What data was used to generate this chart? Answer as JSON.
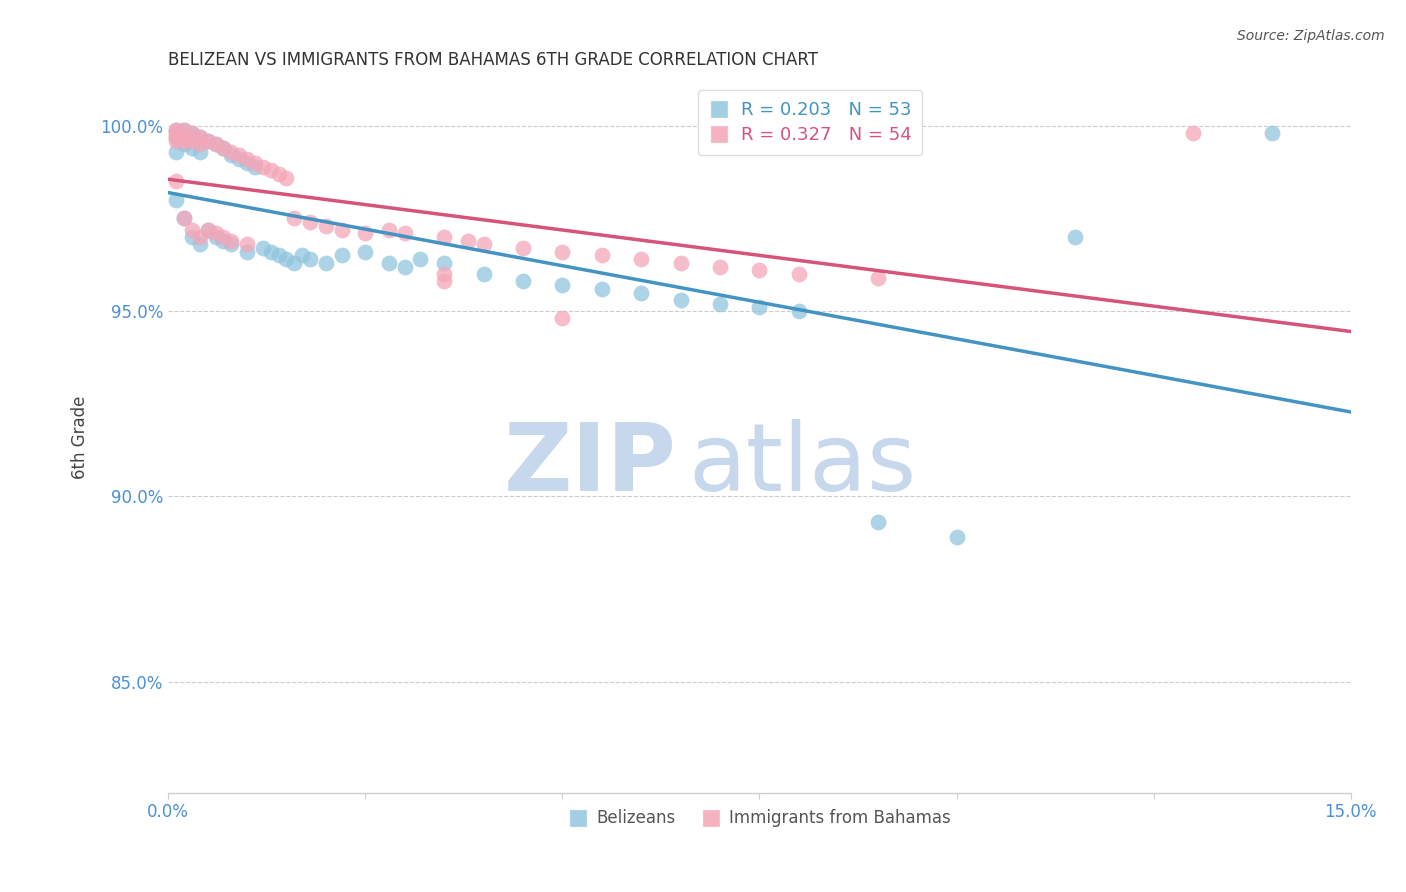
{
  "title": "BELIZEAN VS IMMIGRANTS FROM BAHAMAS 6TH GRADE CORRELATION CHART",
  "source": "Source: ZipAtlas.com",
  "ylabel": "6th Grade",
  "xlim": [
    0.0,
    0.15
  ],
  "ylim": [
    0.82,
    1.012
  ],
  "yticks": [
    0.85,
    0.9,
    0.95,
    1.0
  ],
  "ytick_labels": [
    "85.0%",
    "90.0%",
    "95.0%",
    "100.0%"
  ],
  "xticks": [
    0.0,
    0.025,
    0.05,
    0.075,
    0.1,
    0.125,
    0.15
  ],
  "blue_R": 0.203,
  "blue_N": 53,
  "pink_R": 0.327,
  "pink_N": 54,
  "blue_color": "#92c5de",
  "pink_color": "#f4a6b8",
  "blue_line_color": "#4393c3",
  "pink_line_color": "#d6537a",
  "blue_scatter_x": [
    0.001,
    0.001,
    0.001,
    0.001,
    0.002,
    0.002,
    0.002,
    0.002,
    0.003,
    0.003,
    0.003,
    0.004,
    0.004,
    0.004,
    0.005,
    0.005,
    0.006,
    0.006,
    0.007,
    0.007,
    0.008,
    0.008,
    0.009,
    0.01,
    0.01,
    0.011,
    0.012,
    0.013,
    0.014,
    0.015,
    0.016,
    0.017,
    0.018,
    0.02,
    0.022,
    0.025,
    0.028,
    0.03,
    0.032,
    0.035,
    0.04,
    0.045,
    0.05,
    0.055,
    0.06,
    0.065,
    0.07,
    0.075,
    0.08,
    0.09,
    0.1,
    0.115,
    0.14
  ],
  "blue_scatter_y": [
    0.999,
    0.997,
    0.993,
    0.98,
    0.999,
    0.997,
    0.995,
    0.975,
    0.998,
    0.994,
    0.97,
    0.997,
    0.993,
    0.968,
    0.996,
    0.972,
    0.995,
    0.97,
    0.994,
    0.969,
    0.992,
    0.968,
    0.991,
    0.99,
    0.966,
    0.989,
    0.967,
    0.966,
    0.965,
    0.964,
    0.963,
    0.965,
    0.964,
    0.963,
    0.965,
    0.966,
    0.963,
    0.962,
    0.964,
    0.963,
    0.96,
    0.958,
    0.957,
    0.956,
    0.955,
    0.953,
    0.952,
    0.951,
    0.95,
    0.893,
    0.889,
    0.97,
    0.998
  ],
  "pink_scatter_x": [
    0.001,
    0.001,
    0.001,
    0.001,
    0.001,
    0.002,
    0.002,
    0.002,
    0.002,
    0.003,
    0.003,
    0.003,
    0.004,
    0.004,
    0.004,
    0.005,
    0.005,
    0.006,
    0.006,
    0.007,
    0.007,
    0.008,
    0.008,
    0.009,
    0.01,
    0.01,
    0.011,
    0.012,
    0.013,
    0.014,
    0.015,
    0.016,
    0.018,
    0.02,
    0.022,
    0.025,
    0.028,
    0.03,
    0.035,
    0.038,
    0.04,
    0.045,
    0.05,
    0.055,
    0.06,
    0.065,
    0.07,
    0.075,
    0.08,
    0.09,
    0.05,
    0.035,
    0.035,
    0.13
  ],
  "pink_scatter_y": [
    0.999,
    0.998,
    0.997,
    0.996,
    0.985,
    0.999,
    0.997,
    0.996,
    0.975,
    0.998,
    0.996,
    0.972,
    0.997,
    0.995,
    0.97,
    0.996,
    0.972,
    0.995,
    0.971,
    0.994,
    0.97,
    0.993,
    0.969,
    0.992,
    0.991,
    0.968,
    0.99,
    0.989,
    0.988,
    0.987,
    0.986,
    0.975,
    0.974,
    0.973,
    0.972,
    0.971,
    0.972,
    0.971,
    0.97,
    0.969,
    0.968,
    0.967,
    0.966,
    0.965,
    0.964,
    0.963,
    0.962,
    0.961,
    0.96,
    0.959,
    0.948,
    0.96,
    0.958,
    0.998
  ]
}
